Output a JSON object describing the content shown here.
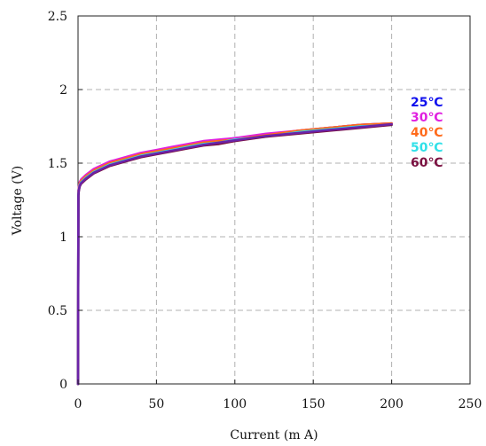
{
  "chart_data": {
    "type": "line",
    "xlabel": "Current (m A)",
    "ylabel": "Voltage (V)",
    "xlim": [
      0,
      250
    ],
    "ylim": [
      0,
      2.5
    ],
    "x_ticks": [
      0,
      50,
      100,
      150,
      200,
      250
    ],
    "y_ticks": [
      0,
      0.5,
      1,
      1.5,
      2,
      2.5
    ],
    "x_tick_labels": [
      "0",
      "50",
      "100",
      "150",
      "200",
      "250"
    ],
    "y_tick_labels": [
      "0",
      "0.5",
      "1",
      "1.5",
      "2",
      "2.5"
    ],
    "grid": true,
    "legend_position": "right",
    "series": [
      {
        "name": "25℃",
        "color": "#1010ee",
        "x": [
          0,
          0.2,
          0.5,
          1,
          2,
          3,
          5,
          10,
          20,
          30,
          40,
          50,
          60,
          70,
          80,
          90,
          100,
          120,
          140,
          160,
          180,
          200
        ],
        "y": [
          0,
          1.3,
          1.33,
          1.36,
          1.38,
          1.39,
          1.41,
          1.45,
          1.5,
          1.53,
          1.56,
          1.58,
          1.6,
          1.62,
          1.64,
          1.65,
          1.67,
          1.69,
          1.72,
          1.74,
          1.76,
          1.77
        ]
      },
      {
        "name": "30℃",
        "color": "#e020e0",
        "x": [
          0,
          0.2,
          0.5,
          1,
          2,
          3,
          5,
          10,
          20,
          30,
          40,
          50,
          60,
          70,
          80,
          90,
          100,
          120,
          140,
          160,
          180,
          200
        ],
        "y": [
          0,
          1.31,
          1.34,
          1.37,
          1.39,
          1.4,
          1.42,
          1.46,
          1.51,
          1.54,
          1.57,
          1.59,
          1.61,
          1.63,
          1.65,
          1.66,
          1.67,
          1.7,
          1.72,
          1.74,
          1.76,
          1.77
        ]
      },
      {
        "name": "40℃",
        "color": "#ff6a1a",
        "x": [
          0,
          0.2,
          0.5,
          1,
          2,
          3,
          5,
          10,
          20,
          30,
          40,
          50,
          60,
          70,
          80,
          90,
          100,
          120,
          140,
          160,
          180,
          200
        ],
        "y": [
          0,
          1.3,
          1.33,
          1.36,
          1.38,
          1.39,
          1.41,
          1.45,
          1.5,
          1.53,
          1.56,
          1.58,
          1.6,
          1.62,
          1.64,
          1.65,
          1.66,
          1.69,
          1.72,
          1.74,
          1.76,
          1.77
        ]
      },
      {
        "name": "50℃",
        "color": "#30e0e8",
        "x": [
          0,
          0.2,
          0.5,
          1,
          2,
          3,
          5,
          10,
          20,
          30,
          40,
          50,
          60,
          70,
          80,
          90,
          100,
          120,
          140,
          160,
          180,
          200
        ],
        "y": [
          0,
          1.29,
          1.32,
          1.35,
          1.37,
          1.38,
          1.4,
          1.44,
          1.49,
          1.52,
          1.55,
          1.57,
          1.59,
          1.61,
          1.63,
          1.64,
          1.66,
          1.68,
          1.71,
          1.73,
          1.75,
          1.76
        ]
      },
      {
        "name": "60℃",
        "color": "#7a1040",
        "x": [
          0,
          0.2,
          0.5,
          1,
          2,
          3,
          5,
          10,
          20,
          30,
          40,
          50,
          60,
          70,
          80,
          90,
          100,
          120,
          140,
          160,
          180,
          200
        ],
        "y": [
          0,
          1.28,
          1.31,
          1.34,
          1.36,
          1.37,
          1.39,
          1.43,
          1.48,
          1.51,
          1.54,
          1.56,
          1.58,
          1.6,
          1.62,
          1.63,
          1.65,
          1.68,
          1.7,
          1.72,
          1.74,
          1.76
        ]
      },
      {
        "name": "",
        "color": "#6a22a8",
        "x": [
          0,
          0.2,
          0.5,
          1,
          2,
          3,
          5,
          10,
          20,
          30,
          40,
          50,
          60,
          70,
          80,
          90,
          100,
          120,
          140,
          160,
          180,
          200
        ],
        "y": [
          0,
          1.285,
          1.315,
          1.345,
          1.365,
          1.375,
          1.395,
          1.435,
          1.485,
          1.515,
          1.545,
          1.565,
          1.585,
          1.605,
          1.625,
          1.64,
          1.655,
          1.685,
          1.705,
          1.725,
          1.745,
          1.765
        ]
      }
    ]
  }
}
